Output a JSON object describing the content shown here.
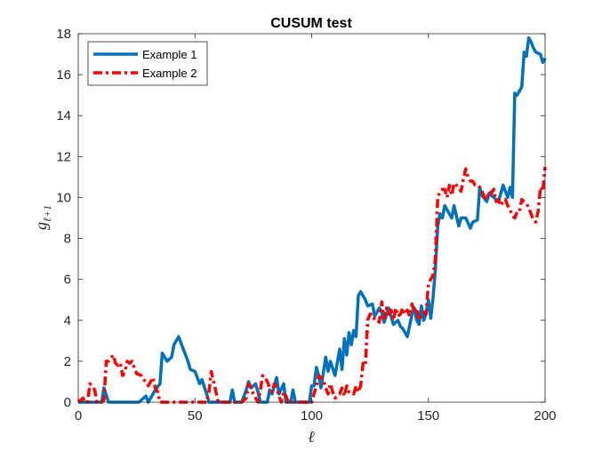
{
  "chart_data": {
    "type": "line",
    "title": "CUSUM test",
    "xlabel": "ℓ",
    "ylabel": "g",
    "ylabel_subscript": "ℓ+1",
    "xlim": [
      0,
      200
    ],
    "ylim": [
      0,
      18
    ],
    "xticks": [
      0,
      50,
      100,
      150,
      200
    ],
    "yticks": [
      0,
      2,
      4,
      6,
      8,
      10,
      12,
      14,
      16,
      18
    ],
    "grid": false,
    "legend_position": "top-left",
    "series": [
      {
        "name": "Example 1",
        "color": "#0072BD",
        "style": "solid",
        "points": [
          [
            0,
            0
          ],
          [
            5,
            0
          ],
          [
            10,
            0
          ],
          [
            11,
            0.7
          ],
          [
            13,
            0
          ],
          [
            20,
            0
          ],
          [
            26,
            0
          ],
          [
            29,
            0.3
          ],
          [
            30,
            0
          ],
          [
            33,
            0.6
          ],
          [
            35,
            0.9
          ],
          [
            36,
            2.4
          ],
          [
            38,
            2.0
          ],
          [
            40,
            2.2
          ],
          [
            41,
            2.8
          ],
          [
            43,
            3.2
          ],
          [
            45,
            2.6
          ],
          [
            47,
            2.0
          ],
          [
            48,
            1.6
          ],
          [
            50,
            1.5
          ],
          [
            52,
            0.9
          ],
          [
            53,
            1.1
          ],
          [
            55,
            0.4
          ],
          [
            56,
            0
          ],
          [
            60,
            0
          ],
          [
            65,
            0
          ],
          [
            66,
            0.6
          ],
          [
            67,
            0
          ],
          [
            70,
            0
          ],
          [
            72,
            0.6
          ],
          [
            73,
            1.0
          ],
          [
            74,
            0.7
          ],
          [
            76,
            0.9
          ],
          [
            77,
            0.5
          ],
          [
            78,
            0
          ],
          [
            81,
            0
          ],
          [
            82,
            0.6
          ],
          [
            83,
            0.4
          ],
          [
            85,
            1.2
          ],
          [
            86,
            0.4
          ],
          [
            88,
            0.9
          ],
          [
            89,
            0
          ],
          [
            91,
            0
          ],
          [
            92,
            0.6
          ],
          [
            93,
            0
          ],
          [
            96,
            0
          ],
          [
            99,
            0
          ],
          [
            100,
            0.8
          ],
          [
            101,
            0.8
          ],
          [
            102,
            1.7
          ],
          [
            103,
            1.3
          ],
          [
            104,
            0.7
          ],
          [
            106,
            2.2
          ],
          [
            107,
            1.5
          ],
          [
            108,
            2.0
          ],
          [
            110,
            1.3
          ],
          [
            112,
            2.6
          ],
          [
            113,
            1.6
          ],
          [
            114,
            3.1
          ],
          [
            115,
            2.3
          ],
          [
            116,
            3.4
          ],
          [
            117,
            2.8
          ],
          [
            118,
            3.5
          ],
          [
            119,
            3.2
          ],
          [
            120,
            5.2
          ],
          [
            121,
            5.4
          ],
          [
            123,
            5.0
          ],
          [
            124,
            4.7
          ],
          [
            126,
            4.8
          ],
          [
            127,
            4.2
          ],
          [
            129,
            4.6
          ],
          [
            130,
            4.4
          ],
          [
            131,
            3.9
          ],
          [
            133,
            4.6
          ],
          [
            135,
            3.8
          ],
          [
            137,
            4.0
          ],
          [
            138,
            3.7
          ],
          [
            139,
            3.6
          ],
          [
            141,
            3.2
          ],
          [
            143,
            4.3
          ],
          [
            144,
            4.6
          ],
          [
            145,
            4.0
          ],
          [
            146,
            3.8
          ],
          [
            147,
            4.7
          ],
          [
            148,
            4.0
          ],
          [
            149,
            4.3
          ],
          [
            150,
            5.0
          ],
          [
            151,
            4.1
          ],
          [
            152,
            5.1
          ],
          [
            153,
            6.5
          ],
          [
            154,
            8.6
          ],
          [
            155,
            9.2
          ],
          [
            156,
            9.0
          ],
          [
            157,
            9.6
          ],
          [
            159,
            9.2
          ],
          [
            160,
            9.0
          ],
          [
            161,
            9.6
          ],
          [
            163,
            8.6
          ],
          [
            164,
            9.0
          ],
          [
            166,
            9.0
          ],
          [
            168,
            8.5
          ],
          [
            169,
            8.8
          ],
          [
            171,
            8.9
          ],
          [
            172,
            10.5
          ],
          [
            173,
            10.1
          ],
          [
            175,
            9.8
          ],
          [
            176,
            10.2
          ],
          [
            178,
            10.0
          ],
          [
            180,
            9.8
          ],
          [
            182,
            10.6
          ],
          [
            184,
            10.0
          ],
          [
            185,
            10.5
          ],
          [
            186,
            10.0
          ],
          [
            187,
            15.1
          ],
          [
            188,
            15.0
          ],
          [
            189,
            15.2
          ],
          [
            190,
            15.4
          ],
          [
            191,
            17.1
          ],
          [
            192,
            16.9
          ],
          [
            193,
            17.8
          ],
          [
            194,
            17.6
          ],
          [
            195,
            17.3
          ],
          [
            196,
            17.1
          ],
          [
            198,
            17.0
          ],
          [
            199,
            16.6
          ],
          [
            200,
            16.8
          ]
        ]
      },
      {
        "name": "Example 2",
        "color": "#FF0000",
        "style": "dashdot",
        "points": [
          [
            0,
            0
          ],
          [
            2,
            0.2
          ],
          [
            3,
            0
          ],
          [
            4,
            0
          ],
          [
            5,
            0.9
          ],
          [
            6,
            0.8
          ],
          [
            7,
            0.6
          ],
          [
            8,
            0
          ],
          [
            10,
            0
          ],
          [
            11,
            0.1
          ],
          [
            12,
            2.0
          ],
          [
            13,
            2.0
          ],
          [
            15,
            2.3
          ],
          [
            16,
            1.9
          ],
          [
            17,
            1.8
          ],
          [
            18,
            1.9
          ],
          [
            19,
            1.3
          ],
          [
            20,
            1.5
          ],
          [
            21,
            2.0
          ],
          [
            22,
            1.9
          ],
          [
            23,
            2.0
          ],
          [
            24,
            1.7
          ],
          [
            25,
            1.4
          ],
          [
            27,
            1.3
          ],
          [
            28,
            1.1
          ],
          [
            29,
            1.0
          ],
          [
            30,
            0.8
          ],
          [
            32,
            1.2
          ],
          [
            33,
            0.7
          ],
          [
            34,
            0.5
          ],
          [
            35,
            0
          ],
          [
            40,
            0
          ],
          [
            45,
            0
          ],
          [
            50,
            0
          ],
          [
            55,
            0
          ],
          [
            56,
            0.5
          ],
          [
            57,
            1.5
          ],
          [
            58,
            1.0
          ],
          [
            59,
            0.5
          ],
          [
            60,
            0
          ],
          [
            65,
            0
          ],
          [
            70,
            0
          ],
          [
            72,
            0.2
          ],
          [
            73,
            0.9
          ],
          [
            74,
            0.7
          ],
          [
            75,
            0.4
          ],
          [
            76,
            0.2
          ],
          [
            77,
            0
          ],
          [
            78,
            0.6
          ],
          [
            79,
            1.3
          ],
          [
            80,
            1.2
          ],
          [
            81,
            1.0
          ],
          [
            82,
            0.7
          ],
          [
            83,
            0.5
          ],
          [
            84,
            0.9
          ],
          [
            85,
            0.7
          ],
          [
            86,
            0.3
          ],
          [
            87,
            0
          ],
          [
            88,
            0.5
          ],
          [
            89,
            0.3
          ],
          [
            90,
            0
          ],
          [
            95,
            0
          ],
          [
            100,
            0
          ],
          [
            101,
            0.4
          ],
          [
            102,
            0.8
          ],
          [
            103,
            1.3
          ],
          [
            105,
            1.1
          ],
          [
            106,
            0.7
          ],
          [
            107,
            0.4
          ],
          [
            108,
            0.9
          ],
          [
            109,
            0.5
          ],
          [
            110,
            0.2
          ],
          [
            112,
            0.4
          ],
          [
            113,
            0.7
          ],
          [
            114,
            0.3
          ],
          [
            115,
            0.8
          ],
          [
            116,
            0.5
          ],
          [
            117,
            0.5
          ],
          [
            118,
            0.4
          ],
          [
            119,
            0.8
          ],
          [
            120,
            0.5
          ],
          [
            121,
            0.8
          ],
          [
            122,
            1.9
          ],
          [
            123,
            1.8
          ],
          [
            124,
            4.0
          ],
          [
            125,
            4.3
          ],
          [
            126,
            4.3
          ],
          [
            127,
            4.0
          ],
          [
            128,
            4.0
          ],
          [
            129,
            3.9
          ],
          [
            130,
            4.9
          ],
          [
            131,
            4.1
          ],
          [
            132,
            4.6
          ],
          [
            133,
            4.3
          ],
          [
            134,
            4.5
          ],
          [
            135,
            4.0
          ],
          [
            136,
            4.6
          ],
          [
            137,
            4.2
          ],
          [
            138,
            4.3
          ],
          [
            139,
            4.6
          ],
          [
            140,
            4.3
          ],
          [
            141,
            4.5
          ],
          [
            142,
            4.2
          ],
          [
            143,
            4.8
          ],
          [
            144,
            4.4
          ],
          [
            145,
            4.6
          ],
          [
            146,
            4.0
          ],
          [
            147,
            4.3
          ],
          [
            148,
            4.4
          ],
          [
            149,
            4.3
          ],
          [
            150,
            5.8
          ],
          [
            151,
            6.0
          ],
          [
            152,
            6.2
          ],
          [
            153,
            7.0
          ],
          [
            154,
            10.0
          ],
          [
            155,
            10.3
          ],
          [
            156,
            10.4
          ],
          [
            157,
            10.4
          ],
          [
            158,
            10.0
          ],
          [
            159,
            10.6
          ],
          [
            160,
            10.1
          ],
          [
            161,
            10.7
          ],
          [
            162,
            10.6
          ],
          [
            163,
            10.5
          ],
          [
            164,
            10.3
          ],
          [
            165,
            10.9
          ],
          [
            166,
            11.4
          ],
          [
            167,
            11.0
          ],
          [
            168,
            10.8
          ],
          [
            169,
            10.8
          ],
          [
            170,
            10.6
          ],
          [
            171,
            10.6
          ],
          [
            172,
            10.5
          ],
          [
            173,
            10.3
          ],
          [
            174,
            10.0
          ],
          [
            175,
            9.9
          ],
          [
            176,
            10.3
          ],
          [
            177,
            10.2
          ],
          [
            178,
            10.4
          ],
          [
            179,
            9.8
          ],
          [
            180,
            9.9
          ],
          [
            181,
            9.6
          ],
          [
            182,
            9.8
          ],
          [
            183,
            9.9
          ],
          [
            184,
            9.6
          ],
          [
            185,
            9.4
          ],
          [
            186,
            9.1
          ],
          [
            187,
            9.0
          ],
          [
            188,
            9.3
          ],
          [
            189,
            9.3
          ],
          [
            190,
            9.9
          ],
          [
            191,
            9.8
          ],
          [
            192,
            9.7
          ],
          [
            193,
            9.5
          ],
          [
            194,
            9.2
          ],
          [
            195,
            8.9
          ],
          [
            196,
            8.8
          ],
          [
            197,
            9.3
          ],
          [
            198,
            10.5
          ],
          [
            199,
            10.3
          ],
          [
            200,
            11.5
          ]
        ]
      }
    ]
  }
}
